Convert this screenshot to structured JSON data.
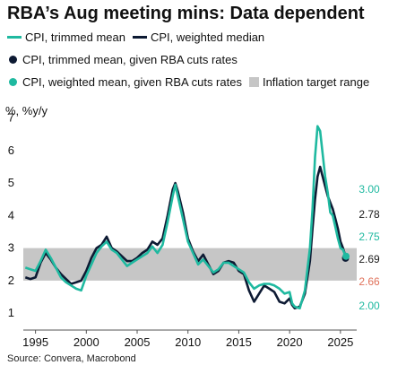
{
  "title": "RBA’s Aug meeting mins: Data dependent",
  "y_unit_label": "%, %y/y",
  "source": "Source: Convera, Macrobond",
  "legend": {
    "row1": [
      {
        "label": "CPI, trimmed mean",
        "color": "#1fb9a0",
        "icon": "line-swatch-icon"
      },
      {
        "label": "CPI, weighted median",
        "color": "#0d1a33",
        "icon": "line-swatch-icon"
      }
    ],
    "row2": [
      {
        "label": "CPI, trimmed mean, given RBA cuts rates",
        "color": "#0d1a33",
        "icon": "dot-swatch-icon"
      }
    ],
    "row3": [
      {
        "label": "CPI, weighted mean, given RBA cuts rates",
        "color": "#1fb9a0",
        "icon": "dot-swatch-icon"
      },
      {
        "label": "Inflation target range",
        "color": "#c6c6c6",
        "icon": "box-swatch-icon"
      }
    ]
  },
  "chart_data": {
    "type": "line",
    "title": "RBA’s Aug meeting mins: Data dependent",
    "ylabel": "%, %y/y",
    "xlim": [
      1993.8,
      2026.6
    ],
    "ylim": [
      0.7,
      7.1
    ],
    "x_ticks": [
      "1995",
      "2000",
      "2005",
      "2010",
      "2015",
      "2020",
      "2025"
    ],
    "y_ticks": [
      "1",
      "2",
      "3",
      "4",
      "5",
      "6",
      "7"
    ],
    "target_band": {
      "label": "Inflation target range",
      "from": 2,
      "to": 3,
      "color": "#c6c6c6"
    },
    "series": [
      {
        "name": "CPI, trimmed mean",
        "color": "#1fb9a0",
        "points": [
          [
            1994.0,
            2.4
          ],
          [
            1994.5,
            2.35
          ],
          [
            1995.0,
            2.3
          ],
          [
            1995.5,
            2.6
          ],
          [
            1996.0,
            2.95
          ],
          [
            1996.5,
            2.7
          ],
          [
            1997.0,
            2.4
          ],
          [
            1997.5,
            2.1
          ],
          [
            1998.0,
            1.95
          ],
          [
            1998.5,
            1.85
          ],
          [
            1999.0,
            1.75
          ],
          [
            1999.5,
            1.7
          ],
          [
            2000.0,
            2.15
          ],
          [
            2000.5,
            2.5
          ],
          [
            2001.0,
            2.85
          ],
          [
            2001.5,
            3.05
          ],
          [
            2002.0,
            3.2
          ],
          [
            2002.5,
            2.95
          ],
          [
            2003.0,
            2.85
          ],
          [
            2003.5,
            2.65
          ],
          [
            2004.0,
            2.45
          ],
          [
            2004.5,
            2.55
          ],
          [
            2005.0,
            2.65
          ],
          [
            2005.5,
            2.75
          ],
          [
            2006.0,
            2.85
          ],
          [
            2006.5,
            3.05
          ],
          [
            2007.0,
            2.85
          ],
          [
            2007.5,
            3.1
          ],
          [
            2008.0,
            3.8
          ],
          [
            2008.5,
            4.6
          ],
          [
            2008.75,
            4.95
          ],
          [
            2009.0,
            4.6
          ],
          [
            2009.5,
            3.9
          ],
          [
            2010.0,
            3.2
          ],
          [
            2010.5,
            2.85
          ],
          [
            2011.0,
            2.5
          ],
          [
            2011.5,
            2.65
          ],
          [
            2012.0,
            2.45
          ],
          [
            2012.5,
            2.25
          ],
          [
            2013.0,
            2.35
          ],
          [
            2013.5,
            2.55
          ],
          [
            2014.0,
            2.55
          ],
          [
            2014.5,
            2.45
          ],
          [
            2015.0,
            2.35
          ],
          [
            2015.5,
            2.25
          ],
          [
            2016.0,
            1.95
          ],
          [
            2016.5,
            1.75
          ],
          [
            2017.0,
            1.85
          ],
          [
            2017.5,
            1.9
          ],
          [
            2018.0,
            1.9
          ],
          [
            2018.5,
            1.85
          ],
          [
            2019.0,
            1.75
          ],
          [
            2019.5,
            1.6
          ],
          [
            2020.0,
            1.65
          ],
          [
            2020.25,
            1.3
          ],
          [
            2020.5,
            1.2
          ],
          [
            2021.0,
            1.15
          ],
          [
            2021.5,
            1.7
          ],
          [
            2022.0,
            3.0
          ],
          [
            2022.25,
            4.2
          ],
          [
            2022.5,
            5.8
          ],
          [
            2022.75,
            6.75
          ],
          [
            2023.0,
            6.6
          ],
          [
            2023.25,
            5.9
          ],
          [
            2023.5,
            5.2
          ],
          [
            2023.75,
            4.7
          ],
          [
            2024.0,
            4.1
          ],
          [
            2024.25,
            4.0
          ],
          [
            2024.5,
            3.65
          ],
          [
            2024.75,
            3.3
          ],
          [
            2025.0,
            3.0
          ],
          [
            2025.25,
            2.95
          ],
          [
            2025.5,
            2.75
          ]
        ]
      },
      {
        "name": "CPI, weighted median",
        "color": "#0d1a33",
        "points": [
          [
            1994.0,
            2.1
          ],
          [
            1994.5,
            2.05
          ],
          [
            1995.0,
            2.1
          ],
          [
            1995.5,
            2.55
          ],
          [
            1996.0,
            2.85
          ],
          [
            1996.5,
            2.65
          ],
          [
            1997.0,
            2.4
          ],
          [
            1997.5,
            2.2
          ],
          [
            1998.0,
            2.05
          ],
          [
            1998.5,
            1.9
          ],
          [
            1999.0,
            1.95
          ],
          [
            1999.5,
            2.0
          ],
          [
            2000.0,
            2.3
          ],
          [
            2000.5,
            2.7
          ],
          [
            2001.0,
            3.0
          ],
          [
            2001.5,
            3.1
          ],
          [
            2002.0,
            3.35
          ],
          [
            2002.5,
            3.0
          ],
          [
            2003.0,
            2.9
          ],
          [
            2003.5,
            2.75
          ],
          [
            2004.0,
            2.6
          ],
          [
            2004.5,
            2.6
          ],
          [
            2005.0,
            2.7
          ],
          [
            2005.5,
            2.85
          ],
          [
            2006.0,
            2.95
          ],
          [
            2006.5,
            3.2
          ],
          [
            2007.0,
            3.1
          ],
          [
            2007.5,
            3.3
          ],
          [
            2008.0,
            4.0
          ],
          [
            2008.5,
            4.8
          ],
          [
            2008.75,
            5.0
          ],
          [
            2009.0,
            4.75
          ],
          [
            2009.5,
            4.1
          ],
          [
            2010.0,
            3.3
          ],
          [
            2010.5,
            2.9
          ],
          [
            2011.0,
            2.6
          ],
          [
            2011.5,
            2.8
          ],
          [
            2012.0,
            2.5
          ],
          [
            2012.5,
            2.2
          ],
          [
            2013.0,
            2.3
          ],
          [
            2013.5,
            2.55
          ],
          [
            2014.0,
            2.6
          ],
          [
            2014.5,
            2.55
          ],
          [
            2015.0,
            2.3
          ],
          [
            2015.5,
            2.2
          ],
          [
            2016.0,
            1.7
          ],
          [
            2016.5,
            1.35
          ],
          [
            2017.0,
            1.6
          ],
          [
            2017.5,
            1.85
          ],
          [
            2018.0,
            1.75
          ],
          [
            2018.5,
            1.65
          ],
          [
            2019.0,
            1.35
          ],
          [
            2019.5,
            1.3
          ],
          [
            2020.0,
            1.45
          ],
          [
            2020.25,
            1.25
          ],
          [
            2020.5,
            1.15
          ],
          [
            2021.0,
            1.2
          ],
          [
            2021.5,
            1.6
          ],
          [
            2022.0,
            2.6
          ],
          [
            2022.25,
            3.6
          ],
          [
            2022.5,
            4.5
          ],
          [
            2022.75,
            5.2
          ],
          [
            2023.0,
            5.5
          ],
          [
            2023.25,
            5.2
          ],
          [
            2023.5,
            4.9
          ],
          [
            2023.75,
            4.6
          ],
          [
            2024.0,
            4.4
          ],
          [
            2024.25,
            4.2
          ],
          [
            2024.5,
            3.9
          ],
          [
            2024.75,
            3.6
          ],
          [
            2025.0,
            3.2
          ],
          [
            2025.25,
            3.0
          ],
          [
            2025.5,
            2.75
          ]
        ]
      },
      {
        "name": "CPI, trimmed mean, given RBA cuts rates",
        "color": "#0d1a33",
        "marker": "dot",
        "points": [
          [
            2025.5,
            2.69
          ]
        ]
      },
      {
        "name": "CPI, weighted mean, given RBA cuts rates",
        "color": "#1fb9a0",
        "marker": "dot",
        "points": [
          [
            2025.55,
            2.75
          ]
        ]
      }
    ],
    "annotations": [
      {
        "text": "3.00",
        "y": 3.0,
        "color": "#1fb9a0"
      },
      {
        "text": "2.78",
        "y": 2.78,
        "color": "#1a1a1a"
      },
      {
        "text": "2.75",
        "y": 2.75,
        "color": "#1fb9a0"
      },
      {
        "text": "2.69",
        "y": 2.69,
        "color": "#1a1a1a"
      },
      {
        "text": "2.66",
        "y": 2.66,
        "color": "#e0725b"
      },
      {
        "text": "2.00",
        "y": 2.0,
        "color": "#1fb9a0"
      }
    ]
  }
}
